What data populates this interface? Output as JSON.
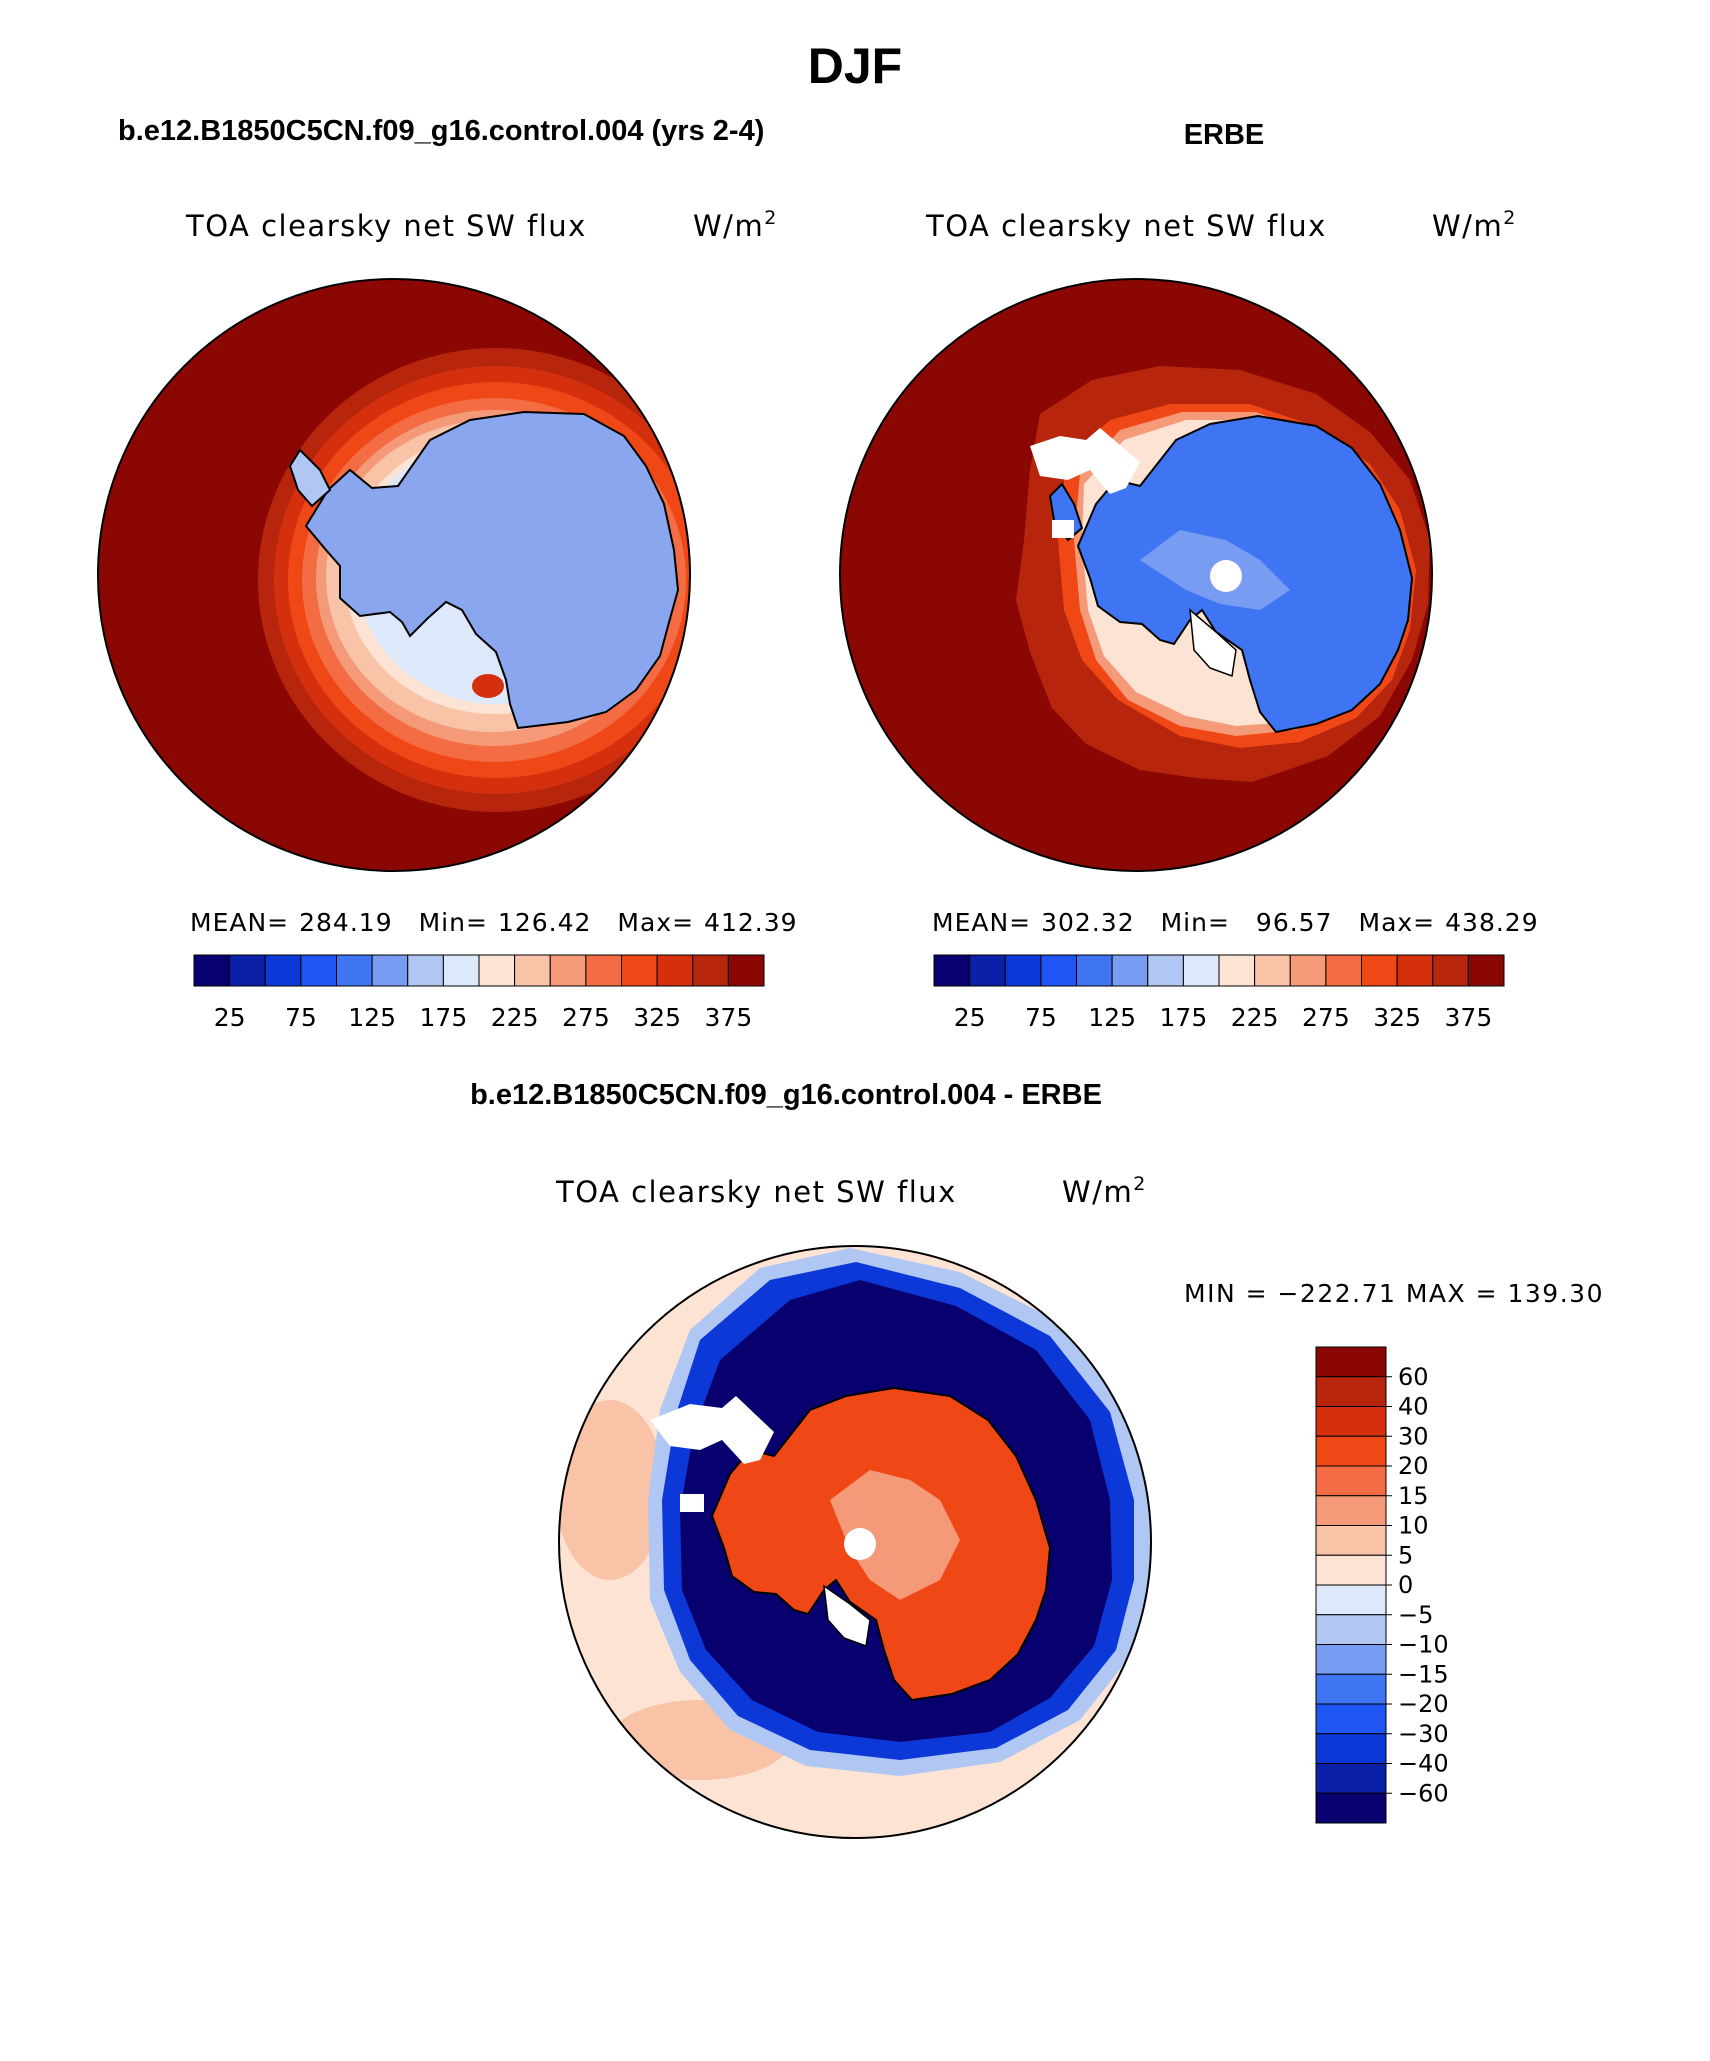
{
  "figure": {
    "title": "DJF",
    "bottom_title": "b.e12.B1850C5CN.f09_g16.control.004 - ERBE"
  },
  "colors": {
    "continent_outline": "#000000",
    "cmap_abs": [
      "#08006e",
      "#0a20a8",
      "#0d38d8",
      "#1f55f2",
      "#3f75f2",
      "#779cf2",
      "#b0c7f4",
      "#dde9fb",
      "#fde3d4",
      "#f9c3a8",
      "#f59a78",
      "#f36c43",
      "#f04716",
      "#d4300d",
      "#b6250c",
      "#8b0703"
    ],
    "cmap_diff": [
      "#08006e",
      "#0a20a8",
      "#0d38d8",
      "#1f55f2",
      "#3f75f2",
      "#779cf2",
      "#b0c7f4",
      "#dde9fb",
      "#fde3d4",
      "#f9c3a8",
      "#f59a78",
      "#f36c43",
      "#f04716",
      "#d4300d",
      "#b6250c",
      "#8b0703"
    ]
  },
  "chart_data": [
    {
      "type": "heatmap",
      "projection": "south polar stereographic",
      "panel_title": "b.e12.B1850C5CN.f09_g16.control.004 (yrs 2-4)",
      "field": "TOA clearsky net SW flux",
      "units": "W/m",
      "units_sup": "2",
      "stats": {
        "mean_label": "MEAN=",
        "mean": "284.19",
        "min_label": "Min=",
        "min": "126.42",
        "max_label": "Max=",
        "max": "412.39"
      },
      "colorbar_ticks": [
        "25",
        "75",
        "125",
        "175",
        "225",
        "275",
        "325",
        "375"
      ],
      "levels": [
        0,
        25,
        50,
        75,
        100,
        125,
        150,
        175,
        200,
        225,
        250,
        275,
        300,
        325,
        350,
        375,
        400
      ]
    },
    {
      "type": "heatmap",
      "projection": "south polar stereographic",
      "panel_title": "ERBE",
      "field": "TOA clearsky net SW flux",
      "units": "W/m",
      "units_sup": "2",
      "stats": {
        "mean_label": "MEAN=",
        "mean": "302.32",
        "min_label": "Min=",
        "min": "96.57",
        "max_label": "Max=",
        "max": "438.29"
      },
      "colorbar_ticks": [
        "25",
        "75",
        "125",
        "175",
        "225",
        "275",
        "325",
        "375"
      ],
      "levels": [
        0,
        25,
        50,
        75,
        100,
        125,
        150,
        175,
        200,
        225,
        250,
        275,
        300,
        325,
        350,
        375,
        400
      ]
    },
    {
      "type": "heatmap",
      "projection": "south polar stereographic",
      "panel_title": "b.e12.B1850C5CN.f09_g16.control.004 - ERBE",
      "field": "TOA clearsky net SW flux",
      "units": "W/m",
      "units_sup": "2",
      "stats": {
        "text": "MIN = −222.71 MAX = 139.30",
        "min": -222.71,
        "max": 139.3
      },
      "colorbar_ticks": [
        "60",
        "40",
        "30",
        "20",
        "15",
        "10",
        "5",
        "0",
        "−5",
        "−10",
        "−15",
        "−20",
        "−30",
        "−40",
        "−60"
      ],
      "levels": [
        -60,
        -40,
        -30,
        -20,
        -15,
        -10,
        -5,
        0,
        5,
        10,
        15,
        20,
        30,
        40,
        60
      ]
    }
  ]
}
